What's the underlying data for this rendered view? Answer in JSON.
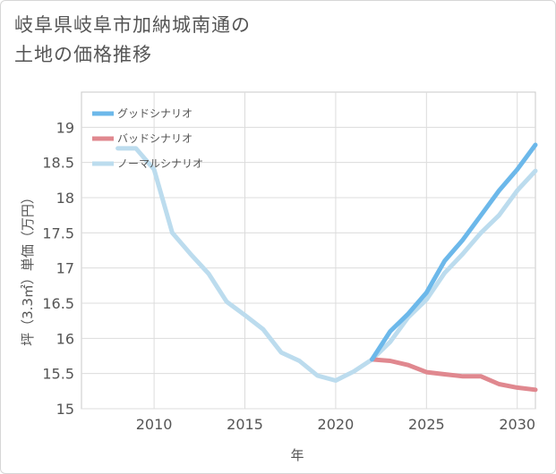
{
  "title": {
    "line1": "岐阜県岐阜市加納城南通の",
    "line2": "土地の価格推移"
  },
  "chart_data": {
    "type": "line",
    "xlabel": "年",
    "ylabel": "坪（3.3㎡）単価（万円）",
    "xlim": [
      2006,
      2031
    ],
    "ylim": [
      15,
      19.5
    ],
    "xticks": [
      2010,
      2015,
      2020,
      2025,
      2030
    ],
    "yticks": [
      15,
      15.5,
      16,
      16.5,
      17,
      17.5,
      18,
      18.5,
      19
    ],
    "grid": true,
    "legend_position": "top-left",
    "series": [
      {
        "name": "グッドシナリオ",
        "color": "#6cb8ea",
        "x": [
          2022,
          2023,
          2024,
          2025,
          2026,
          2027,
          2028,
          2029,
          2030,
          2031
        ],
        "y": [
          15.7,
          16.1,
          16.35,
          16.65,
          17.1,
          17.4,
          17.75,
          18.1,
          18.4,
          18.75
        ]
      },
      {
        "name": "バッドシナリオ",
        "color": "#e0888f",
        "x": [
          2022,
          2023,
          2024,
          2025,
          2026,
          2027,
          2028,
          2029,
          2030,
          2031
        ],
        "y": [
          15.7,
          15.68,
          15.62,
          15.52,
          15.49,
          15.46,
          15.46,
          15.35,
          15.3,
          15.27
        ]
      },
      {
        "name": "ノーマルシナリオ",
        "color": "#bcdcee",
        "x": [
          2008,
          2009,
          2010,
          2011,
          2012,
          2013,
          2014,
          2015,
          2016,
          2017,
          2018,
          2019,
          2020,
          2021,
          2022,
          2023,
          2024,
          2025,
          2026,
          2027,
          2028,
          2029,
          2030,
          2031
        ],
        "y": [
          18.7,
          18.7,
          18.4,
          17.5,
          17.2,
          16.92,
          16.52,
          16.33,
          16.13,
          15.8,
          15.68,
          15.47,
          15.4,
          15.53,
          15.7,
          15.95,
          16.3,
          16.55,
          16.93,
          17.2,
          17.5,
          17.75,
          18.1,
          18.38
        ]
      }
    ]
  }
}
